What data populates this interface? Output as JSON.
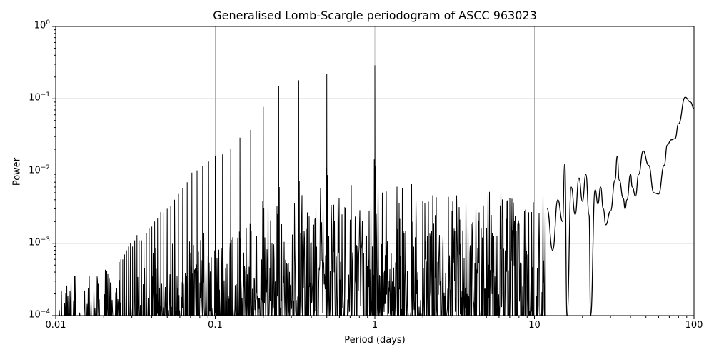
{
  "chart_data": {
    "type": "line",
    "title": "Generalised Lomb-Scargle periodogram of ASCC 963023",
    "xlabel": "Period (days)",
    "ylabel": "Power",
    "xscale": "log",
    "yscale": "log",
    "xlim": [
      0.01,
      100
    ],
    "ylim": [
      0.0001,
      1
    ],
    "grid": true,
    "legend": null,
    "x_ticks": [
      {
        "value": 0.01,
        "label": "0.01"
      },
      {
        "value": 0.1,
        "label": "0.1"
      },
      {
        "value": 1,
        "label": "1"
      },
      {
        "value": 10,
        "label": "10"
      },
      {
        "value": 100,
        "label": "100"
      }
    ],
    "y_ticks": [
      {
        "value": 1,
        "base": "10",
        "exp": "0"
      },
      {
        "value": 0.1,
        "base": "10",
        "exp": "−1"
      },
      {
        "value": 0.01,
        "base": "10",
        "exp": "−2"
      },
      {
        "value": 0.001,
        "base": "10",
        "exp": "−3"
      },
      {
        "value": 0.0001,
        "base": "10",
        "exp": "−4"
      }
    ],
    "line_color": "#000000",
    "grid_color": "#b0b0b0",
    "harmonic_peaks": {
      "period": [
        1.0,
        0.5,
        0.3333,
        0.25,
        0.2,
        0.1667,
        0.1429,
        0.125,
        0.1111,
        0.1,
        0.0909,
        0.0833,
        0.0769,
        0.0714,
        0.0667,
        0.0625,
        0.0588,
        0.0556,
        0.0526,
        0.05,
        0.0476,
        0.0455,
        0.0435,
        0.0417,
        0.04,
        0.0385,
        0.037,
        0.0357,
        0.0345,
        0.0333,
        0.0323,
        0.03125,
        0.0303,
        0.0294,
        0.0286,
        0.0278,
        0.027,
        0.0263,
        0.0256,
        0.025
      ],
      "power": [
        0.29,
        0.22,
        0.18,
        0.15,
        0.077,
        0.037,
        0.029,
        0.02,
        0.017,
        0.016,
        0.0135,
        0.0117,
        0.0102,
        0.0095,
        0.007,
        0.0058,
        0.0048,
        0.004,
        0.0033,
        0.003,
        0.0026,
        0.0027,
        0.0022,
        0.002,
        0.0017,
        0.0016,
        0.0014,
        0.0012,
        0.0011,
        0.0011,
        0.0013,
        0.0011,
        0.0009,
        0.001,
        0.0009,
        0.0008,
        0.0007,
        0.0006,
        0.0006,
        0.00055
      ]
    },
    "noise_envelope": {
      "period": [
        0.01,
        0.015,
        0.02,
        0.03,
        0.05,
        0.08,
        0.12,
        0.2,
        0.3,
        0.5,
        0.8,
        1.0,
        1.5,
        2,
        3,
        5,
        8,
        10,
        12
      ],
      "power": [
        0.0003,
        0.0004,
        0.00045,
        0.0005,
        0.0008,
        0.0012,
        0.0015,
        0.0025,
        0.003,
        0.004,
        0.005,
        0.006,
        0.004,
        0.0045,
        0.004,
        0.004,
        0.0045,
        0.005,
        0.006
      ]
    },
    "long_period_curve": {
      "period": [
        12,
        13,
        14,
        15,
        15.5,
        16,
        17,
        18,
        19,
        20,
        21,
        22,
        22.5,
        24,
        25,
        26,
        27,
        28,
        30,
        32,
        33,
        34,
        36,
        37,
        38,
        40,
        41,
        43,
        45,
        48,
        52,
        56,
        60,
        65,
        68,
        72,
        76,
        80,
        88,
        95,
        100
      ],
      "power": [
        0.003,
        0.0008,
        0.004,
        0.002,
        0.0125,
        0.0001,
        0.006,
        0.0025,
        0.008,
        0.0038,
        0.009,
        0.0025,
        0.0001,
        0.0055,
        0.0035,
        0.006,
        0.003,
        0.0018,
        0.0028,
        0.0075,
        0.016,
        0.0075,
        0.0042,
        0.003,
        0.004,
        0.009,
        0.006,
        0.0045,
        0.009,
        0.019,
        0.012,
        0.005,
        0.0048,
        0.012,
        0.023,
        0.027,
        0.028,
        0.045,
        0.105,
        0.09,
        0.073
      ]
    },
    "notable_dips_to_floor": [
      4.7,
      6.5,
      8.8,
      11.7,
      15.8,
      22.5
    ]
  }
}
